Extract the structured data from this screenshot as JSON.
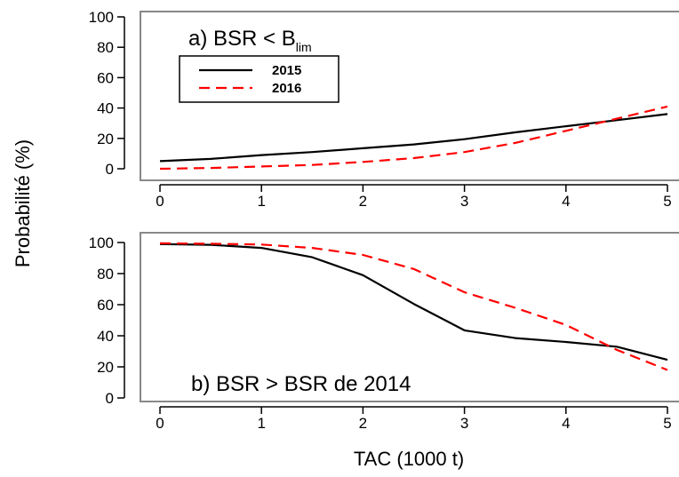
{
  "figure": {
    "ylabel": "Probabilité (%)",
    "xlabel": "TAC (1000 t)"
  },
  "chart_data": [
    {
      "type": "line",
      "panel": "a",
      "title_prefix": "a) BSR < B",
      "title_subscript": "lim",
      "xlim": [
        0,
        5
      ],
      "ylim": [
        0,
        100
      ],
      "xticks": [
        0,
        1,
        2,
        3,
        4,
        5
      ],
      "yticks": [
        0,
        20,
        40,
        60,
        80,
        100
      ],
      "grid": false,
      "legend": {
        "position": "top-left",
        "entries": [
          "2015",
          "2016"
        ]
      },
      "x": [
        0,
        0.5,
        1,
        1.5,
        2,
        2.5,
        3,
        3.5,
        4,
        4.5,
        5
      ],
      "series": [
        {
          "name": "2015",
          "color": "#000000",
          "dash": "solid",
          "values": [
            5,
            6.5,
            9,
            11,
            13.5,
            16,
            19.5,
            24,
            28,
            32,
            36
          ]
        },
        {
          "name": "2016",
          "color": "#ff0000",
          "dash": "dashed",
          "values": [
            0,
            0.5,
            1.5,
            2.5,
            4.5,
            7,
            11,
            17,
            25,
            33,
            41
          ]
        }
      ]
    },
    {
      "type": "line",
      "panel": "b",
      "title_prefix": "b) BSR > BSR de 2014",
      "title_subscript": "",
      "xlim": [
        0,
        5
      ],
      "ylim": [
        0,
        100
      ],
      "xticks": [
        0,
        1,
        2,
        3,
        4,
        5
      ],
      "yticks": [
        0,
        20,
        40,
        60,
        80,
        100
      ],
      "grid": false,
      "legend": null,
      "x": [
        0,
        0.5,
        1,
        1.5,
        2,
        2.5,
        3,
        3.5,
        4,
        4.5,
        5
      ],
      "series": [
        {
          "name": "2015",
          "color": "#000000",
          "dash": "solid",
          "values": [
            99,
            98.5,
            96.5,
            90.5,
            79,
            60.5,
            43.5,
            38.5,
            36,
            33,
            24.5
          ]
        },
        {
          "name": "2016",
          "color": "#ff0000",
          "dash": "dashed",
          "values": [
            99.5,
            99.2,
            98.7,
            96.5,
            92,
            83,
            68,
            58,
            47,
            31,
            18
          ]
        }
      ]
    }
  ]
}
